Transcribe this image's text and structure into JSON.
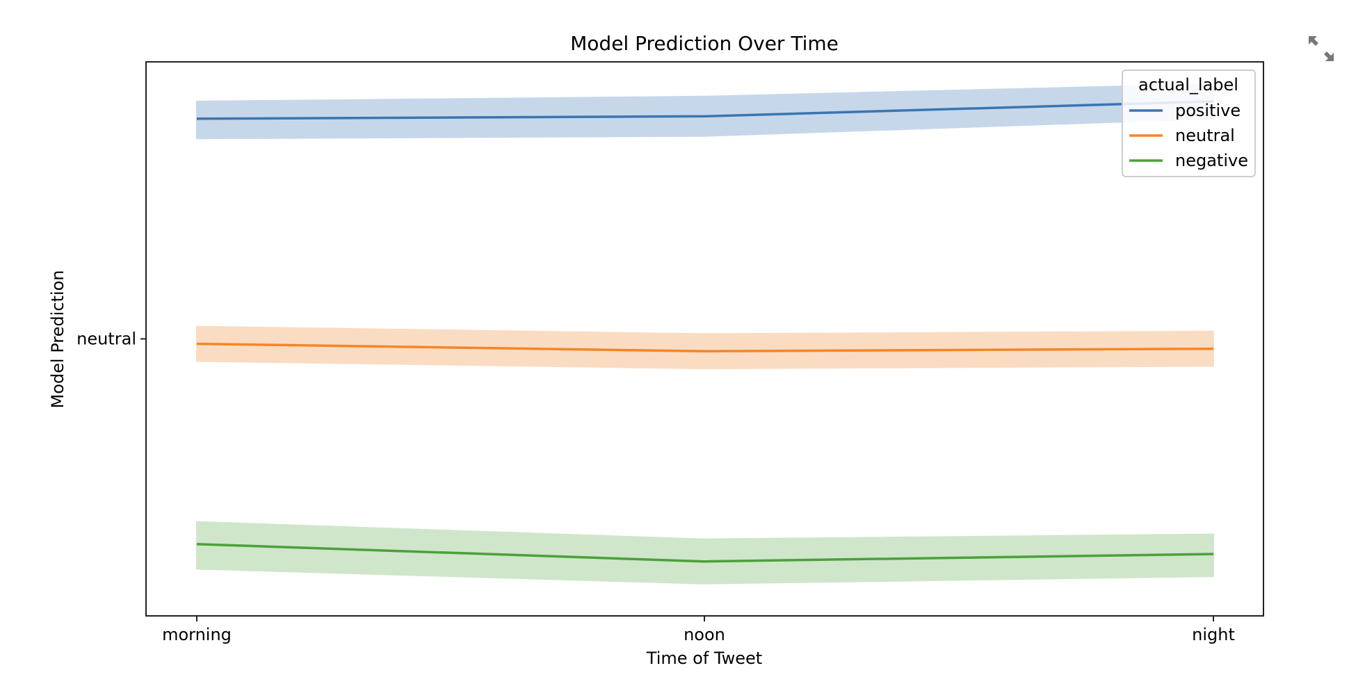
{
  "chart_data": {
    "type": "line",
    "title": "Model Prediction Over Time",
    "xlabel": "Time of Tweet",
    "ylabel": "Model Prediction",
    "categories": [
      "morning",
      "noon",
      "night"
    ],
    "y_tick_labels": [
      "neutral"
    ],
    "ylim": [
      -1.12,
      1.12
    ],
    "grid": false,
    "legend": {
      "title": "actual_label",
      "position": "top-right"
    },
    "series": [
      {
        "name": "positive",
        "color": "#3a75b0",
        "band_color": "#c6d7ea",
        "values": [
          0.89,
          0.9,
          0.96
        ],
        "ci_low": [
          0.81,
          0.82,
          0.89
        ],
        "ci_high": [
          0.96,
          0.98,
          1.03
        ]
      },
      {
        "name": "neutral",
        "color": "#f58525",
        "band_color": "#fadcc2",
        "values": [
          -0.02,
          -0.05,
          -0.04
        ],
        "ci_low": [
          -0.09,
          -0.12,
          -0.11
        ],
        "ci_high": [
          0.05,
          0.02,
          0.03
        ]
      },
      {
        "name": "negative",
        "color": "#4ca03a",
        "band_color": "#cfe6cb",
        "values": [
          -0.83,
          -0.9,
          -0.87
        ],
        "ci_low": [
          -0.93,
          -0.99,
          -0.96
        ],
        "ci_high": [
          -0.74,
          -0.81,
          -0.79
        ]
      }
    ]
  },
  "toolbar": {
    "expand_icon": "expand-icon"
  }
}
